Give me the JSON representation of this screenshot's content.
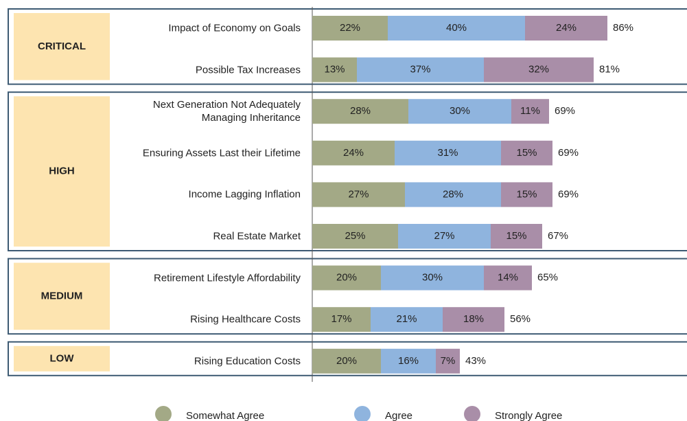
{
  "chart_data": {
    "type": "stacked-bar-horizontal",
    "categories": [
      "Impact of Economy on Goals",
      "Possible Tax Increases",
      "Next Generation Not Adequately\nManaging Inheritance",
      "Ensuring Assets Last their Lifetime",
      "Income Lagging Inflation",
      "Real Estate Market",
      "Retirement Lifestyle Affordability",
      "Rising Healthcare Costs",
      "Rising Education Costs"
    ],
    "category_groups": [
      "CRITICAL",
      "CRITICAL",
      "HIGH",
      "HIGH",
      "HIGH",
      "HIGH",
      "MEDIUM",
      "MEDIUM",
      "LOW"
    ],
    "series": [
      {
        "name": "Somewhat Agree",
        "color": "#a3a986",
        "values": [
          22,
          13,
          28,
          24,
          27,
          25,
          20,
          17,
          20
        ],
        "value_labels": [
          "22%",
          "13%",
          "28%",
          "24%",
          "27%",
          "25%",
          "20%",
          "17%",
          "20%"
        ]
      },
      {
        "name": "Agree",
        "color": "#8fb4de",
        "values": [
          40,
          37,
          30,
          31,
          28,
          27,
          30,
          21,
          16
        ],
        "value_labels": [
          "40%",
          "37%",
          "30%",
          "31%",
          "28%",
          "27%",
          "30%",
          "21%",
          "16%"
        ]
      },
      {
        "name": "Strongly Agree",
        "color": "#a98ea8",
        "values": [
          24,
          32,
          11,
          15,
          15,
          15,
          14,
          18,
          7
        ],
        "value_labels": [
          "24%",
          "32%",
          "11%",
          "15%",
          "15%",
          "15%",
          "14%",
          "18%",
          "7%"
        ]
      }
    ],
    "totals": [
      86,
      81,
      69,
      69,
      69,
      67,
      65,
      56,
      43
    ],
    "total_labels": [
      "86%",
      "81%",
      "69%",
      "69%",
      "69%",
      "67%",
      "65%",
      "56%",
      "43%"
    ],
    "legend": "bottom"
  }
}
